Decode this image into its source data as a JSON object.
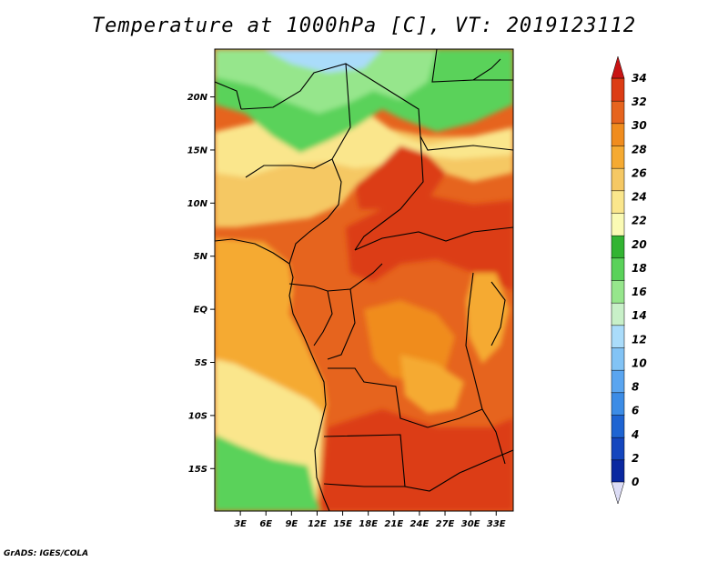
{
  "title": "Temperature at 1000hPa [C], VT: 2019123112",
  "credit": "GrADS: IGES/COLA",
  "map": {
    "variable": "Temperature at 1000hPa",
    "unit": "C",
    "valid_time": "2019123112",
    "lat_ticks": [
      "20N",
      "15N",
      "10N",
      "5N",
      "EQ",
      "5S",
      "10S",
      "15S"
    ],
    "lon_ticks": [
      "3E",
      "6E",
      "9E",
      "12E",
      "15E",
      "18E",
      "21E",
      "24E",
      "27E",
      "30E",
      "33E"
    ],
    "lat_range": [
      -19,
      24.5
    ],
    "lon_range": [
      0,
      35
    ]
  },
  "colorbar": {
    "levels": [
      0,
      2,
      4,
      6,
      8,
      10,
      12,
      14,
      16,
      18,
      20,
      22,
      24,
      26,
      28,
      30,
      32,
      34
    ],
    "labels": [
      "34",
      "32",
      "30",
      "28",
      "26",
      "24",
      "22",
      "20",
      "18",
      "16",
      "14",
      "12",
      "10",
      "8",
      "6",
      "4",
      "2",
      "0"
    ],
    "colors": [
      "#0a0a6e",
      "#0a28a0",
      "#1446be",
      "#1e64d2",
      "#3c8ce6",
      "#5aa5f0",
      "#82c3f5",
      "#aadcfa",
      "#c8f0c8",
      "#96e68c",
      "#5ad25a",
      "#32b432",
      "#fafab4",
      "#fae68c",
      "#f5c864",
      "#f5aa32",
      "#f08c1e",
      "#e6641e",
      "#dc3c14",
      "#c81414"
    ]
  }
}
